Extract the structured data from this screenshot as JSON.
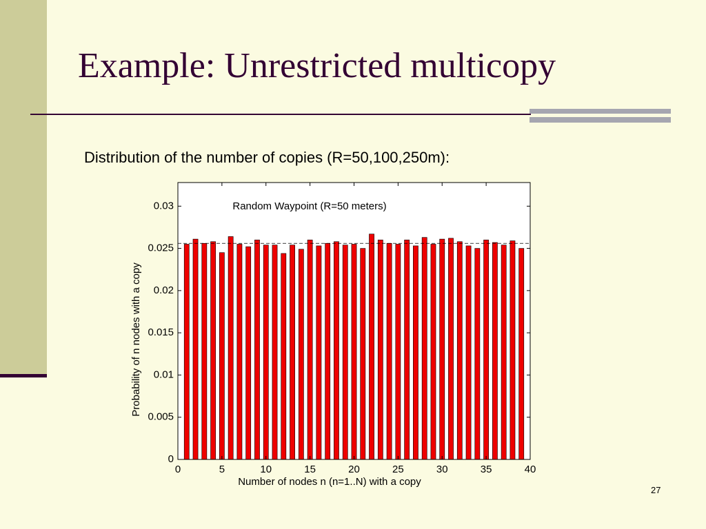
{
  "slide": {
    "title": "Example: Unrestricted multicopy",
    "subtitle": "Distribution of the number of copies (R=50,100,250m):",
    "page_number": "27"
  },
  "chart_data": {
    "type": "bar",
    "title": "Random Waypoint (R=50 meters)",
    "x_label": "Number of nodes n (n=1..N) with a copy",
    "y_label": "Probability of n nodes with a copy",
    "x": [
      1,
      2,
      3,
      4,
      5,
      6,
      7,
      8,
      9,
      10,
      11,
      12,
      13,
      14,
      15,
      16,
      17,
      18,
      19,
      20,
      21,
      22,
      23,
      24,
      25,
      26,
      27,
      28,
      29,
      30,
      31,
      32,
      33,
      34,
      35,
      36,
      37,
      38,
      39
    ],
    "values": [
      0.0255,
      0.0261,
      0.0256,
      0.0258,
      0.0245,
      0.0264,
      0.0255,
      0.0252,
      0.026,
      0.0254,
      0.0254,
      0.0244,
      0.0254,
      0.0249,
      0.026,
      0.0253,
      0.0256,
      0.0258,
      0.0254,
      0.0255,
      0.025,
      0.0267,
      0.026,
      0.0256,
      0.0255,
      0.026,
      0.0253,
      0.0263,
      0.0255,
      0.0261,
      0.0262,
      0.0258,
      0.0253,
      0.025,
      0.026,
      0.0257,
      0.0254,
      0.0259,
      0.025
    ],
    "color": "#ee0000",
    "reference_line": 0.0256,
    "xlim": [
      0,
      40
    ],
    "xticks": [
      0,
      5,
      10,
      15,
      20,
      25,
      30,
      35,
      40
    ],
    "ylim": [
      0,
      0.0328
    ],
    "yticks": [
      0,
      0.005,
      0.01,
      0.015,
      0.02,
      0.025,
      0.03
    ]
  }
}
